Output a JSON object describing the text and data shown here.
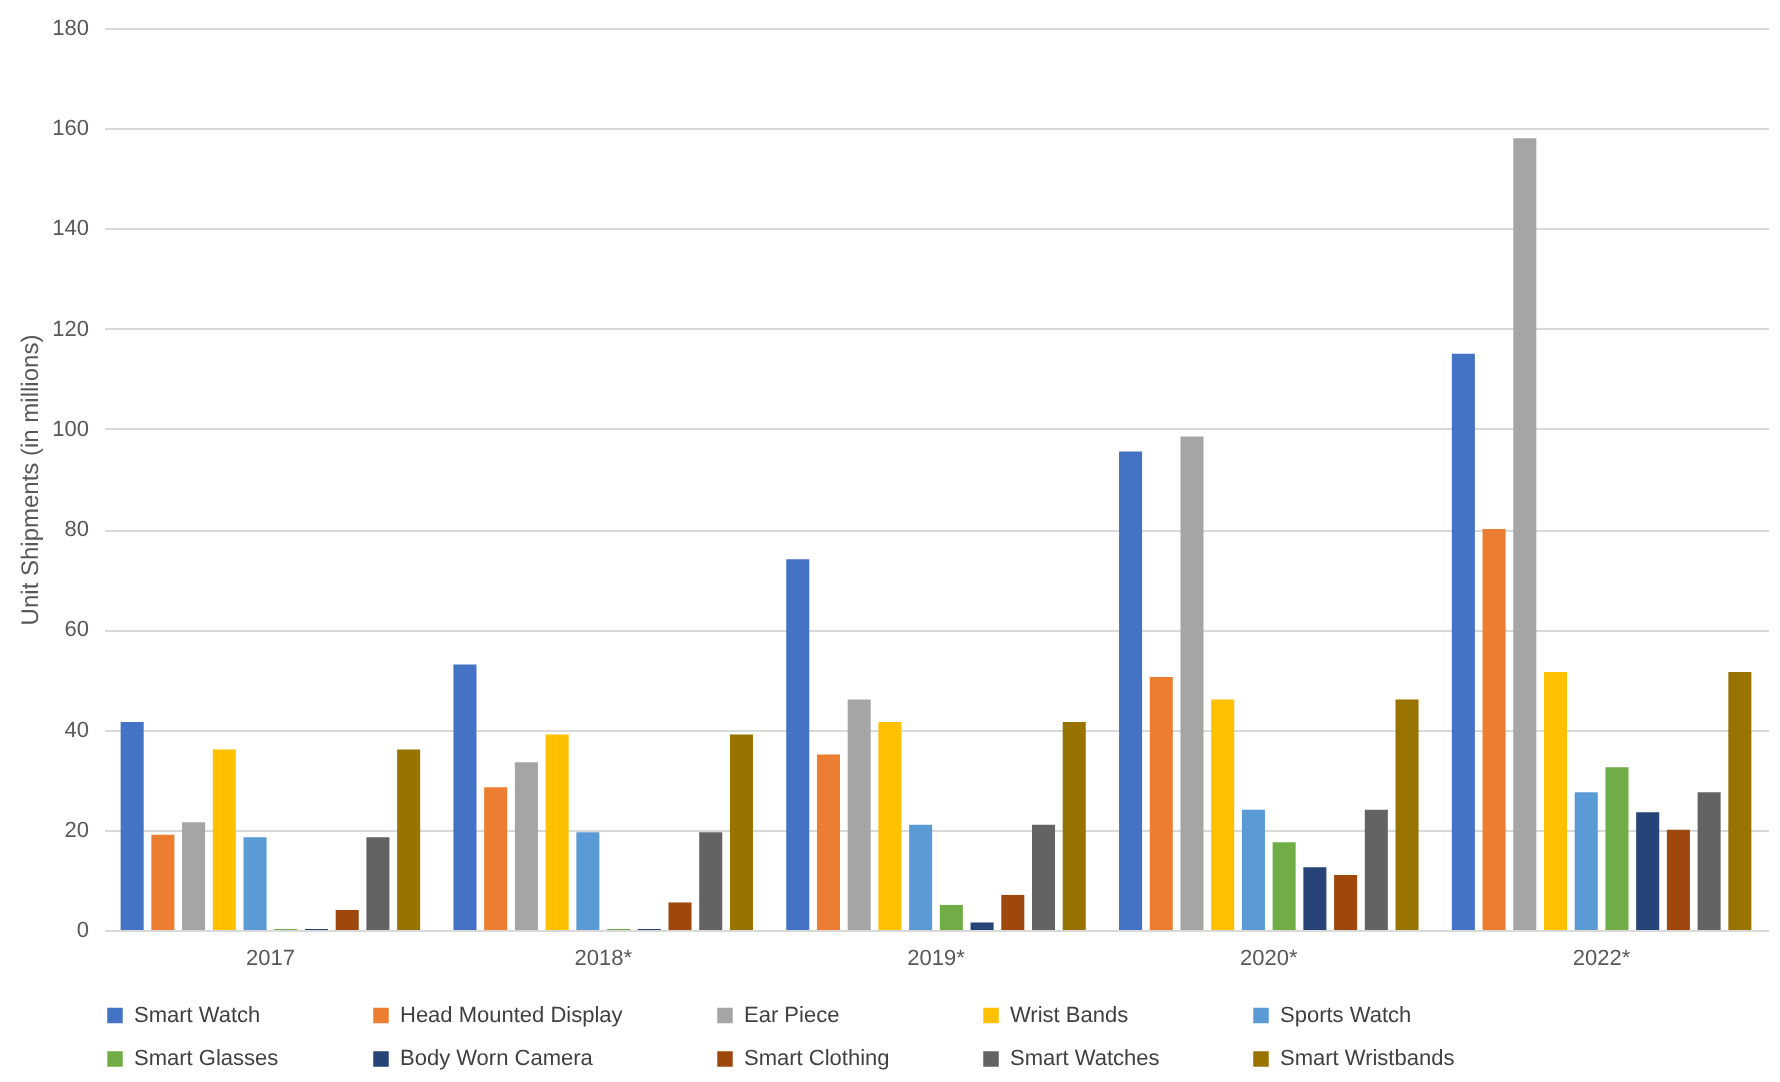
{
  "chart_data": {
    "type": "bar",
    "ylabel": "Unit Shipments (in millions)",
    "categories": [
      "2017",
      "2018*",
      "2019*",
      "2020*",
      "2022*"
    ],
    "series": [
      {
        "name": "Smart Watch",
        "color": "#4472c4",
        "values": [
          41.5,
          53,
          74,
          95.5,
          115
        ]
      },
      {
        "name": "Head Mounted Display",
        "color": "#ed7d31",
        "values": [
          19,
          28.5,
          35,
          50.5,
          80
        ]
      },
      {
        "name": "Ear Piece",
        "color": "#a5a5a5",
        "values": [
          21.5,
          33.5,
          46,
          98.5,
          158
        ]
      },
      {
        "name": "Wrist Bands",
        "color": "#ffc000",
        "values": [
          36,
          39,
          41.5,
          46,
          51.5
        ]
      },
      {
        "name": "Sports Watch",
        "color": "#5b9bd5",
        "values": [
          18.5,
          19.5,
          21,
          24,
          27.5
        ]
      },
      {
        "name": "Smart Glasses",
        "color": "#70ad47",
        "values": [
          0.2,
          0.2,
          5,
          17.5,
          32.5
        ]
      },
      {
        "name": "Body Worn Camera",
        "color": "#264478",
        "values": [
          0.2,
          0.2,
          1.5,
          12.5,
          23.5
        ]
      },
      {
        "name": "Smart Clothing",
        "color": "#9e480e",
        "values": [
          4,
          5.5,
          7,
          11,
          20
        ]
      },
      {
        "name": "Smart Watches",
        "color": "#636363",
        "values": [
          18.5,
          19.5,
          21,
          24,
          27.5
        ]
      },
      {
        "name": "Smart Wristbands",
        "color": "#997300",
        "values": [
          36,
          39,
          41.5,
          46,
          51.5
        ]
      }
    ],
    "ylim": [
      0,
      180
    ],
    "yticks": [
      0,
      20,
      40,
      60,
      80,
      100,
      120,
      140,
      160,
      180
    ],
    "grid": "y",
    "legend": "bottom"
  }
}
